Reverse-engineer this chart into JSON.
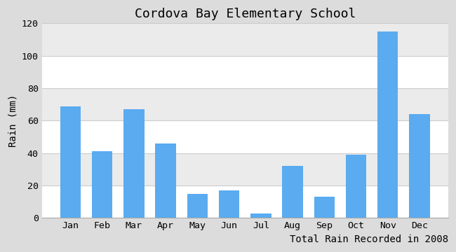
{
  "title": "Cordova Bay Elementary School",
  "xlabel": "Total Rain Recorded in 2008",
  "ylabel": "Rain (mm)",
  "months": [
    "Jan",
    "Feb",
    "Mar",
    "Apr",
    "May",
    "Jun",
    "Jul",
    "Aug",
    "Sep",
    "Oct",
    "Nov",
    "Dec"
  ],
  "values": [
    69,
    41,
    67,
    46,
    15,
    17,
    3,
    32,
    13,
    39,
    115,
    64
  ],
  "bar_color": "#5aabf0",
  "background_color": "#dcdcdc",
  "plot_bg_color": "#ffffff",
  "band_color": "#ebebeb",
  "ylim": [
    0,
    120
  ],
  "yticks": [
    0,
    20,
    40,
    60,
    80,
    100,
    120
  ],
  "grid_color": "#cccccc",
  "title_fontsize": 13,
  "label_fontsize": 10,
  "tick_fontsize": 9.5
}
